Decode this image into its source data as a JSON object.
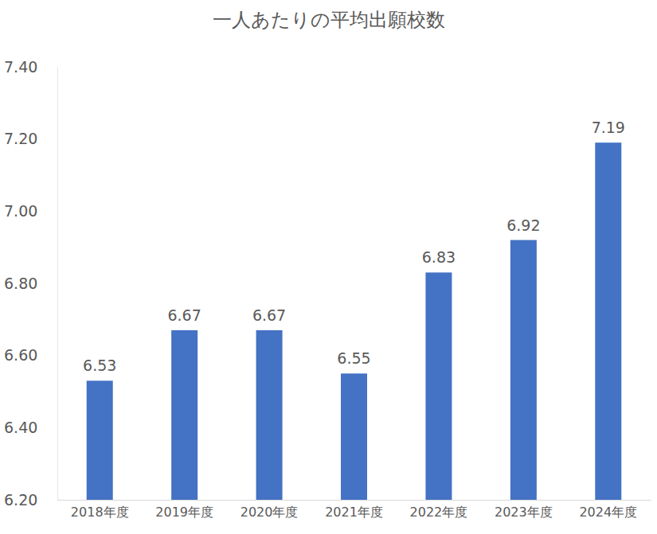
{
  "chart_data": {
    "type": "bar",
    "title": "一人あたりの平均出願校数",
    "categories": [
      "2018年度",
      "2019年度",
      "2020年度",
      "2021年度",
      "2022年度",
      "2023年度",
      "2024年度"
    ],
    "values": [
      6.53,
      6.67,
      6.67,
      6.55,
      6.83,
      6.92,
      7.19
    ],
    "color": "#4472c4",
    "ylim": [
      6.2,
      7.4
    ],
    "yticks": [
      {
        "value": 6.2,
        "label": "6.20"
      },
      {
        "value": 6.4,
        "label": "6.40"
      },
      {
        "value": 6.6,
        "label": "6.60"
      },
      {
        "value": 6.8,
        "label": "6.80"
      },
      {
        "value": 7.0,
        "label": "7.00"
      },
      {
        "value": 7.2,
        "label": "7.20"
      },
      {
        "value": 7.4,
        "label": "7.40"
      }
    ],
    "grid": false,
    "data_labels": true
  }
}
